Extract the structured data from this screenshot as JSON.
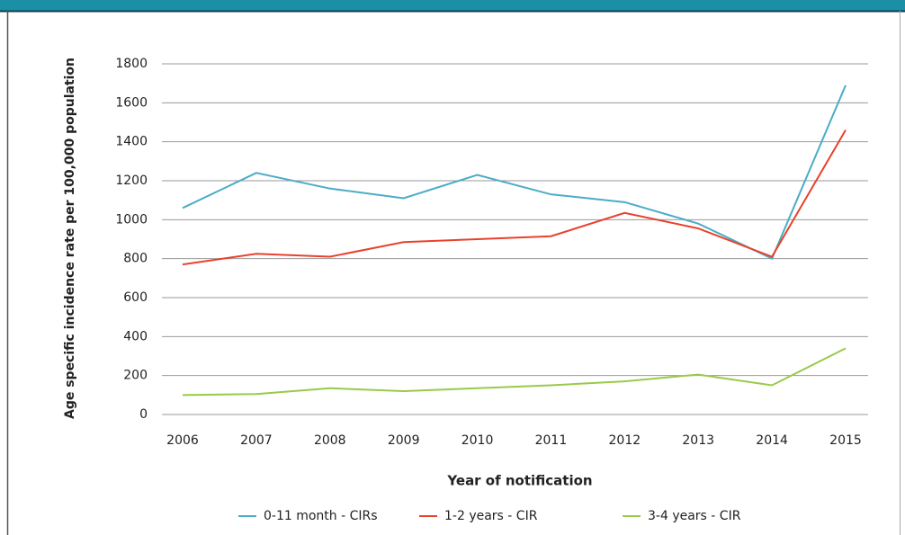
{
  "chart_data": {
    "type": "line",
    "ylabel": "Age specific incidence rate per 100,000 population",
    "xlabel": "Year of notification",
    "categories": [
      "2006",
      "2007",
      "2008",
      "2009",
      "2010",
      "2011",
      "2012",
      "2013",
      "2014",
      "2015"
    ],
    "series": [
      {
        "name": "0-11 month - CIRs",
        "color": "#4bacc6",
        "values": [
          1060,
          1240,
          1160,
          1110,
          1230,
          1130,
          1090,
          980,
          800,
          1690
        ]
      },
      {
        "name": "1-2 years - CIR",
        "color": "#e8412c",
        "values": [
          770,
          825,
          810,
          885,
          900,
          915,
          1035,
          955,
          810,
          1460
        ]
      },
      {
        "name": "3-4 years - CIR",
        "color": "#9bc94a",
        "values": [
          100,
          105,
          135,
          120,
          135,
          150,
          170,
          205,
          150,
          340
        ]
      }
    ],
    "ylim": [
      0,
      1800
    ],
    "yticks": [
      0,
      200,
      400,
      600,
      800,
      1000,
      1200,
      1400,
      1600,
      1800
    ],
    "grid": true,
    "legend": "bottom"
  }
}
